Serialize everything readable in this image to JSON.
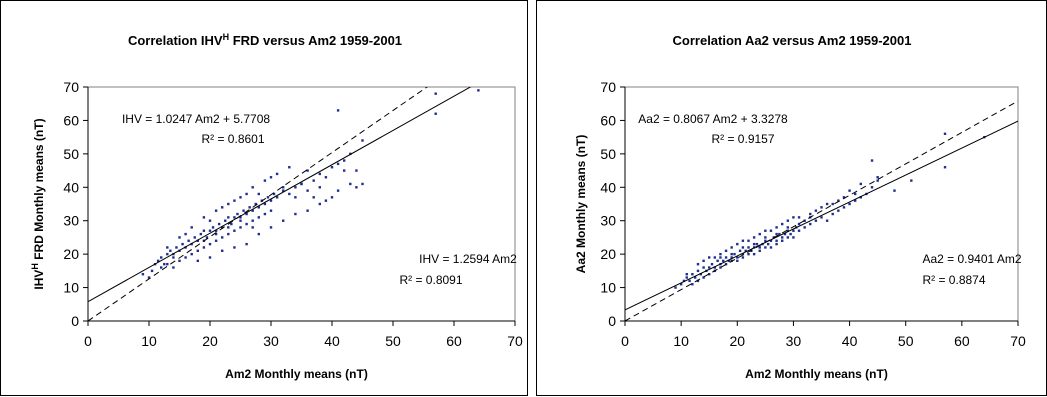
{
  "chart_data": [
    {
      "type": "scatter",
      "title": {
        "pre": "Correlation IHV",
        "sup": "H",
        "post": " FRD versus Am2 1959-2001"
      },
      "xlabel": "Am2 Monthly means (nT)",
      "ylabel": {
        "pre": "IHV",
        "sup": "H",
        "post": " FRD Monthly means (nT)"
      },
      "xlim": [
        0,
        70
      ],
      "ylim": [
        0,
        70
      ],
      "xticks": [
        "0",
        "10",
        "20",
        "30",
        "40",
        "50",
        "60",
        "70"
      ],
      "yticks": [
        "0",
        "10",
        "20",
        "30",
        "40",
        "50",
        "60",
        "70"
      ],
      "grid": false,
      "marker_color": "#1f2f8f",
      "series": [
        {
          "kind": "scatter",
          "points": [
            [
              9,
              14
            ],
            [
              10,
              13
            ],
            [
              10.5,
              15
            ],
            [
              11,
              17
            ],
            [
              11.5,
              18
            ],
            [
              12,
              19
            ],
            [
              12.5,
              17
            ],
            [
              13,
              20
            ],
            [
              13.5,
              21
            ],
            [
              14,
              20
            ],
            [
              14.5,
              22
            ],
            [
              15,
              21
            ],
            [
              15.5,
              23
            ],
            [
              16,
              22
            ],
            [
              16.5,
              24
            ],
            [
              17,
              23
            ],
            [
              17.5,
              25
            ],
            [
              18,
              24
            ],
            [
              18.5,
              26
            ],
            [
              19,
              27
            ],
            [
              19.5,
              25
            ],
            [
              20,
              27
            ],
            [
              20.5,
              28
            ],
            [
              21,
              27
            ],
            [
              21.5,
              29
            ],
            [
              22,
              28
            ],
            [
              22.5,
              30
            ],
            [
              23,
              31
            ],
            [
              23.5,
              29
            ],
            [
              24,
              31
            ],
            [
              24.5,
              32
            ],
            [
              25,
              30
            ],
            [
              25.5,
              33
            ],
            [
              26,
              32
            ],
            [
              26.5,
              34
            ],
            [
              27,
              33
            ],
            [
              27.5,
              35
            ],
            [
              28,
              34
            ],
            [
              28.5,
              36
            ],
            [
              29,
              35
            ],
            [
              29.5,
              37
            ],
            [
              30,
              36
            ],
            [
              30.5,
              38
            ],
            [
              31,
              37
            ],
            [
              32,
              39
            ],
            [
              33,
              38
            ],
            [
              34,
              40
            ],
            [
              35,
              41
            ],
            [
              36,
              39
            ],
            [
              37,
              42
            ],
            [
              38,
              44
            ],
            [
              39,
              43
            ],
            [
              40,
              46
            ],
            [
              41,
              47
            ],
            [
              42,
              48
            ],
            [
              43,
              50
            ],
            [
              44,
              45
            ],
            [
              45,
              41
            ],
            [
              13,
              17
            ],
            [
              14,
              16
            ],
            [
              15,
              18
            ],
            [
              16,
              19
            ],
            [
              17,
              20
            ],
            [
              18,
              21
            ],
            [
              19,
              22
            ],
            [
              20,
              23
            ],
            [
              21,
              24
            ],
            [
              22,
              25
            ],
            [
              23,
              26
            ],
            [
              24,
              27
            ],
            [
              25,
              28
            ],
            [
              26,
              29
            ],
            [
              27,
              30
            ],
            [
              28,
              31
            ],
            [
              29,
              32
            ],
            [
              30,
              33
            ],
            [
              15,
              25
            ],
            [
              17,
              28
            ],
            [
              19,
              31
            ],
            [
              21,
              33
            ],
            [
              23,
              35
            ],
            [
              25,
              37
            ],
            [
              27,
              40
            ],
            [
              29,
              42
            ],
            [
              31,
              44
            ],
            [
              33,
              46
            ],
            [
              35,
              41
            ],
            [
              37,
              37
            ],
            [
              39,
              36
            ],
            [
              41,
              39
            ],
            [
              43,
              41
            ],
            [
              18,
              18
            ],
            [
              20,
              19
            ],
            [
              22,
              21
            ],
            [
              24,
              22
            ],
            [
              26,
              23
            ],
            [
              28,
              26
            ],
            [
              30,
              28
            ],
            [
              32,
              30
            ],
            [
              34,
              32
            ],
            [
              36,
              33
            ],
            [
              38,
              35
            ],
            [
              40,
              37
            ],
            [
              12,
              16
            ],
            [
              16,
              26
            ],
            [
              20,
              30
            ],
            [
              24,
              36
            ],
            [
              28,
              38
            ],
            [
              32,
              40
            ],
            [
              36,
              45
            ],
            [
              41,
              63
            ],
            [
              45,
              54
            ],
            [
              57,
              62
            ],
            [
              57,
              68
            ],
            [
              64,
              69
            ],
            [
              19,
              24
            ],
            [
              21,
              26
            ],
            [
              23,
              28
            ],
            [
              25,
              31
            ],
            [
              27,
              28
            ],
            [
              13,
              22
            ],
            [
              14,
              19
            ],
            [
              22,
              34
            ],
            [
              26,
              38
            ],
            [
              30,
              43
            ],
            [
              34,
              37
            ],
            [
              38,
              40
            ],
            [
              42,
              45
            ],
            [
              44,
              40
            ]
          ]
        },
        {
          "kind": "line",
          "style": "solid",
          "x": [
            0,
            70
          ],
          "y": [
            5.7708,
            77.5
          ]
        },
        {
          "kind": "line",
          "style": "dashed",
          "x": [
            0,
            70
          ],
          "y": [
            0,
            88.16
          ]
        }
      ],
      "annotations": [
        {
          "lines": [
            "IHV = 1.0247 Am2 + 5.7708",
            "R² = 0.8601"
          ]
        },
        {
          "lines": [
            "IHV = 1.2594 Am2",
            "R² = 0.8091"
          ]
        }
      ]
    },
    {
      "type": "scatter",
      "title": {
        "pre": "Correlation Aa2 versus Am2 1959-2001",
        "sup": "",
        "post": ""
      },
      "xlabel": "Am2 Monthly means (nT)",
      "ylabel": {
        "pre": "Aa2 Monthly means (nT)",
        "sup": "",
        "post": ""
      },
      "xlim": [
        0,
        70
      ],
      "ylim": [
        0,
        70
      ],
      "xticks": [
        "0",
        "10",
        "20",
        "30",
        "40",
        "50",
        "60",
        "70"
      ],
      "yticks": [
        "0",
        "10",
        "20",
        "30",
        "40",
        "50",
        "60",
        "70"
      ],
      "grid": false,
      "marker_color": "#1f2f8f",
      "series": [
        {
          "kind": "scatter",
          "points": [
            [
              9,
              10
            ],
            [
              10,
              11
            ],
            [
              10.5,
              12
            ],
            [
              11,
              13
            ],
            [
              11.5,
              12
            ],
            [
              12,
              14
            ],
            [
              12.5,
              13
            ],
            [
              13,
              15
            ],
            [
              13.5,
              14
            ],
            [
              14,
              16
            ],
            [
              14.5,
              15
            ],
            [
              15,
              16
            ],
            [
              15.5,
              17
            ],
            [
              16,
              16
            ],
            [
              16.5,
              18
            ],
            [
              17,
              17
            ],
            [
              17.5,
              18
            ],
            [
              18,
              19
            ],
            [
              18.5,
              18
            ],
            [
              19,
              19
            ],
            [
              19.5,
              20
            ],
            [
              20,
              19
            ],
            [
              20.5,
              21
            ],
            [
              21,
              20
            ],
            [
              21.5,
              21
            ],
            [
              22,
              22
            ],
            [
              22.5,
              21
            ],
            [
              23,
              22
            ],
            [
              23.5,
              23
            ],
            [
              24,
              22
            ],
            [
              24.5,
              23
            ],
            [
              25,
              24
            ],
            [
              25.5,
              23
            ],
            [
              26,
              24
            ],
            [
              26.5,
              25
            ],
            [
              27,
              24
            ],
            [
              27.5,
              26
            ],
            [
              28,
              25
            ],
            [
              28.5,
              26
            ],
            [
              29,
              27
            ],
            [
              29.5,
              26
            ],
            [
              30,
              27
            ],
            [
              30.5,
              28
            ],
            [
              31,
              27
            ],
            [
              32,
              28
            ],
            [
              33,
              29
            ],
            [
              34,
              30
            ],
            [
              35,
              31
            ],
            [
              36,
              30
            ],
            [
              37,
              32
            ],
            [
              38,
              33
            ],
            [
              39,
              34
            ],
            [
              40,
              35
            ],
            [
              41,
              36
            ],
            [
              42,
              37
            ],
            [
              43,
              38
            ],
            [
              44,
              40
            ],
            [
              45,
              42
            ],
            [
              12,
              11
            ],
            [
              13,
              12
            ],
            [
              14,
              13
            ],
            [
              15,
              14
            ],
            [
              16,
              15
            ],
            [
              17,
              16
            ],
            [
              18,
              17
            ],
            [
              19,
              18
            ],
            [
              20,
              18
            ],
            [
              21,
              19
            ],
            [
              22,
              20
            ],
            [
              23,
              20
            ],
            [
              24,
              21
            ],
            [
              25,
              22
            ],
            [
              26,
              22
            ],
            [
              27,
              23
            ],
            [
              28,
              24
            ],
            [
              29,
              25
            ],
            [
              30,
              25
            ],
            [
              13,
              17
            ],
            [
              15,
              19
            ],
            [
              17,
              20
            ],
            [
              19,
              22
            ],
            [
              21,
              24
            ],
            [
              23,
              25
            ],
            [
              25,
              27
            ],
            [
              27,
              28
            ],
            [
              29,
              30
            ],
            [
              31,
              31
            ],
            [
              33,
              32
            ],
            [
              35,
              34
            ],
            [
              37,
              35
            ],
            [
              39,
              37
            ],
            [
              41,
              38
            ],
            [
              11,
              14
            ],
            [
              14,
              18
            ],
            [
              16,
              19
            ],
            [
              18,
              21
            ],
            [
              20,
              23
            ],
            [
              22,
              24
            ],
            [
              24,
              26
            ],
            [
              26,
              27
            ],
            [
              28,
              29
            ],
            [
              30,
              31
            ],
            [
              32,
              30
            ],
            [
              34,
              33
            ],
            [
              36,
              35
            ],
            [
              38,
              36
            ],
            [
              40,
              39
            ],
            [
              42,
              41
            ],
            [
              44,
              48
            ],
            [
              45,
              43
            ],
            [
              48,
              39
            ],
            [
              51,
              42
            ],
            [
              57,
              46
            ],
            [
              57,
              56
            ],
            [
              64,
              55
            ],
            [
              17,
              19
            ],
            [
              19,
              20
            ],
            [
              21,
              22
            ],
            [
              23,
              23
            ],
            [
              25,
              25
            ],
            [
              27,
              26
            ],
            [
              29,
              28
            ],
            [
              31,
              29
            ],
            [
              33,
              31
            ]
          ]
        },
        {
          "kind": "line",
          "style": "solid",
          "x": [
            0,
            70
          ],
          "y": [
            3.3278,
            59.8
          ]
        },
        {
          "kind": "line",
          "style": "dashed",
          "x": [
            0,
            70
          ],
          "y": [
            0,
            65.81
          ]
        }
      ],
      "annotations": [
        {
          "lines": [
            "Aa2 = 0.8067 Am2 + 3.3278",
            "R² = 0.9157"
          ]
        },
        {
          "lines": [
            "Aa2 = 0.9401 Am2",
            "R² = 0.8874"
          ]
        }
      ]
    }
  ]
}
